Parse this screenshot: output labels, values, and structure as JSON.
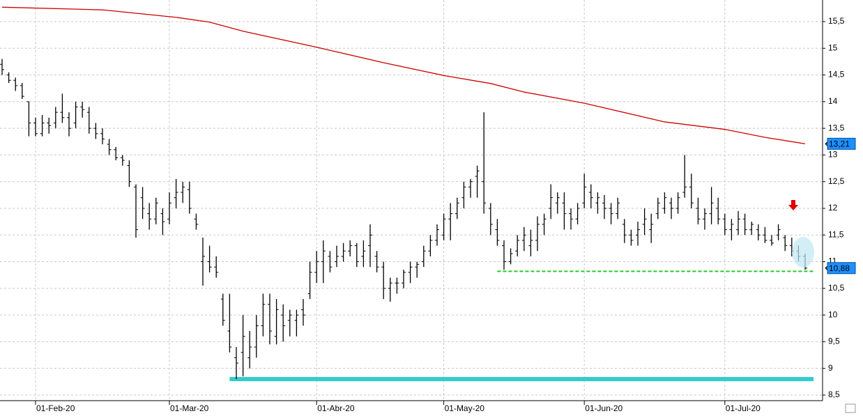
{
  "chart_data": {
    "type": "ohlc",
    "categories": [
      null,
      null,
      null,
      null,
      null,
      "01-Feb-20",
      null,
      null,
      null,
      null,
      null,
      null,
      null,
      null,
      null,
      null,
      null,
      null,
      null,
      null,
      null,
      null,
      null,
      null,
      null,
      "01-Mar-20",
      null,
      null,
      null,
      null,
      null,
      null,
      null,
      null,
      null,
      null,
      null,
      null,
      null,
      null,
      null,
      null,
      null,
      null,
      null,
      null,
      null,
      "01-Abr-20",
      null,
      null,
      null,
      null,
      null,
      null,
      null,
      null,
      null,
      null,
      null,
      null,
      null,
      null,
      null,
      null,
      null,
      null,
      "01-May-20",
      null,
      null,
      null,
      null,
      null,
      null,
      null,
      null,
      null,
      null,
      null,
      null,
      null,
      null,
      null,
      null,
      null,
      null,
      null,
      null,
      "01-Jun-20",
      null,
      null,
      null,
      null,
      null,
      null,
      null,
      null,
      null,
      null,
      null,
      null,
      null,
      null,
      null,
      null,
      null,
      null,
      null,
      null,
      "01-Jul-20",
      null,
      null,
      null,
      null,
      null,
      null,
      null,
      null,
      null,
      null,
      null,
      null
    ],
    "ohlc": [
      [
        14.7,
        14.8,
        14.5,
        14.6
      ],
      [
        14.5,
        14.55,
        14.35,
        14.4
      ],
      [
        14.4,
        14.45,
        14.2,
        14.3
      ],
      [
        14.3,
        14.35,
        14.05,
        14.1
      ],
      [
        14.0,
        14.0,
        13.35,
        13.6
      ],
      [
        13.6,
        13.7,
        13.35,
        13.4
      ],
      [
        13.4,
        13.75,
        13.35,
        13.6
      ],
      [
        13.6,
        13.7,
        13.4,
        13.55
      ],
      [
        13.6,
        13.9,
        13.5,
        13.8
      ],
      [
        13.8,
        14.15,
        13.6,
        13.7
      ],
      [
        13.7,
        13.8,
        13.35,
        13.5
      ],
      [
        13.6,
        14.0,
        13.5,
        13.9
      ],
      [
        13.9,
        14.0,
        13.7,
        13.85
      ],
      [
        13.8,
        13.9,
        13.4,
        13.5
      ],
      [
        13.5,
        13.6,
        13.3,
        13.4
      ],
      [
        13.4,
        13.5,
        13.2,
        13.3
      ],
      [
        13.2,
        13.3,
        13.0,
        13.1
      ],
      [
        13.1,
        13.15,
        12.9,
        12.95
      ],
      [
        12.95,
        13.0,
        12.8,
        12.9
      ],
      [
        12.8,
        12.9,
        12.4,
        12.5
      ],
      [
        12.4,
        12.45,
        11.45,
        11.6
      ],
      [
        12.2,
        12.4,
        11.8,
        12.0
      ],
      [
        11.9,
        12.1,
        11.6,
        11.8
      ],
      [
        11.8,
        12.2,
        11.7,
        12.1
      ],
      [
        11.9,
        12.0,
        11.5,
        11.75
      ],
      [
        11.8,
        12.3,
        11.7,
        12.1
      ],
      [
        12.2,
        12.55,
        12.0,
        12.3
      ],
      [
        12.3,
        12.5,
        12.1,
        12.4
      ],
      [
        12.35,
        12.5,
        11.9,
        12.0
      ],
      [
        11.8,
        11.9,
        11.6,
        11.7
      ],
      [
        11.0,
        11.45,
        10.55,
        11.1
      ],
      [
        11.0,
        11.3,
        10.8,
        10.9
      ],
      [
        10.9,
        11.1,
        10.7,
        10.8
      ],
      [
        10.3,
        10.4,
        9.8,
        9.9
      ],
      [
        9.7,
        10.4,
        9.3,
        9.4
      ],
      [
        9.2,
        9.4,
        8.8,
        9.1
      ],
      [
        9.3,
        10.0,
        8.85,
        9.6
      ],
      [
        9.2,
        9.7,
        9.0,
        9.4
      ],
      [
        9.4,
        10.0,
        9.2,
        9.8
      ],
      [
        9.8,
        10.4,
        9.6,
        10.2
      ],
      [
        10.2,
        10.4,
        9.45,
        9.7
      ],
      [
        9.6,
        10.3,
        9.45,
        10.1
      ],
      [
        10.0,
        10.2,
        9.5,
        9.8
      ],
      [
        9.9,
        10.1,
        9.6,
        10.0
      ],
      [
        9.9,
        10.1,
        9.6,
        10.0
      ],
      [
        10.1,
        10.3,
        9.8,
        10.0
      ],
      [
        10.4,
        11.0,
        10.3,
        10.8
      ],
      [
        10.8,
        11.2,
        10.6,
        11.0
      ],
      [
        11.0,
        11.4,
        10.6,
        11.2
      ],
      [
        11.1,
        11.2,
        10.8,
        10.9
      ],
      [
        11.0,
        11.3,
        10.9,
        11.1
      ],
      [
        11.1,
        11.35,
        11.0,
        11.2
      ],
      [
        11.2,
        11.4,
        11.1,
        11.3
      ],
      [
        11.3,
        11.35,
        10.9,
        11.0
      ],
      [
        11.1,
        11.4,
        10.9,
        11.2
      ],
      [
        11.3,
        11.7,
        10.9,
        11.5
      ],
      [
        11.1,
        11.2,
        10.8,
        10.9
      ],
      [
        10.9,
        11.0,
        10.3,
        10.5
      ],
      [
        10.5,
        10.7,
        10.25,
        10.6
      ],
      [
        10.6,
        10.7,
        10.4,
        10.6
      ],
      [
        10.6,
        10.85,
        10.5,
        10.8
      ],
      [
        10.8,
        11.0,
        10.6,
        10.9
      ],
      [
        10.9,
        11.0,
        10.7,
        10.95
      ],
      [
        11.0,
        11.3,
        10.9,
        11.2
      ],
      [
        11.2,
        11.5,
        11.1,
        11.4
      ],
      [
        11.4,
        11.7,
        11.3,
        11.6
      ],
      [
        11.5,
        11.9,
        11.4,
        11.8
      ],
      [
        11.8,
        12.1,
        11.4,
        11.9
      ],
      [
        11.9,
        12.2,
        11.8,
        12.1
      ],
      [
        12.2,
        12.5,
        12.0,
        12.4
      ],
      [
        12.4,
        12.55,
        12.2,
        12.5
      ],
      [
        12.6,
        12.8,
        12.2,
        12.7
      ],
      [
        12.5,
        13.8,
        11.9,
        12.1
      ],
      [
        12.0,
        12.1,
        11.5,
        11.7
      ],
      [
        11.6,
        11.8,
        11.3,
        11.4
      ],
      [
        11.3,
        11.4,
        10.85,
        11.0
      ],
      [
        11.0,
        11.25,
        10.95,
        11.15
      ],
      [
        11.2,
        11.5,
        11.1,
        11.4
      ],
      [
        11.4,
        11.65,
        11.2,
        11.5
      ],
      [
        11.3,
        11.6,
        11.1,
        11.4
      ],
      [
        11.4,
        11.85,
        11.2,
        11.7
      ],
      [
        11.7,
        11.9,
        11.5,
        11.8
      ],
      [
        12.0,
        12.45,
        11.8,
        12.2
      ],
      [
        12.1,
        12.3,
        11.9,
        12.2
      ],
      [
        12.1,
        12.3,
        11.6,
        11.9
      ],
      [
        11.9,
        12.0,
        11.6,
        11.8
      ],
      [
        11.8,
        12.1,
        11.7,
        12.0
      ],
      [
        12.1,
        12.65,
        12.0,
        12.4
      ],
      [
        12.3,
        12.45,
        12.0,
        12.2
      ],
      [
        12.1,
        12.3,
        11.9,
        12.2
      ],
      [
        12.1,
        12.25,
        11.8,
        12.0
      ],
      [
        12.0,
        12.1,
        11.7,
        11.9
      ],
      [
        11.9,
        12.2,
        11.8,
        12.1
      ],
      [
        11.7,
        11.8,
        11.35,
        11.5
      ],
      [
        11.5,
        11.6,
        11.3,
        11.4
      ],
      [
        11.5,
        11.75,
        11.3,
        11.6
      ],
      [
        11.7,
        12.0,
        11.5,
        11.8
      ],
      [
        11.6,
        11.9,
        11.35,
        11.7
      ],
      [
        11.9,
        12.2,
        11.8,
        12.1
      ],
      [
        12.0,
        12.3,
        11.9,
        12.2
      ],
      [
        12.1,
        12.2,
        11.8,
        12.0
      ],
      [
        12.0,
        12.3,
        11.9,
        12.2
      ],
      [
        12.3,
        13.0,
        12.2,
        12.4
      ],
      [
        12.4,
        12.65,
        12.0,
        12.1
      ],
      [
        12.0,
        12.2,
        11.7,
        11.8
      ],
      [
        11.8,
        12.0,
        11.6,
        11.9
      ],
      [
        11.9,
        12.4,
        11.7,
        12.1
      ],
      [
        12.0,
        12.2,
        11.7,
        11.8
      ],
      [
        11.8,
        11.9,
        11.5,
        11.6
      ],
      [
        11.6,
        11.8,
        11.4,
        11.7
      ],
      [
        11.6,
        11.95,
        11.5,
        11.8
      ],
      [
        11.8,
        11.9,
        11.5,
        11.6
      ],
      [
        11.6,
        11.75,
        11.5,
        11.7
      ],
      [
        11.6,
        11.7,
        11.4,
        11.5
      ],
      [
        11.5,
        11.65,
        11.35,
        11.4
      ],
      [
        11.4,
        11.5,
        11.3,
        11.35
      ],
      [
        11.5,
        11.7,
        11.4,
        11.6
      ],
      [
        11.45,
        11.5,
        11.2,
        11.3
      ],
      [
        11.3,
        11.45,
        11.1,
        11.2
      ],
      [
        11.2,
        11.3,
        11.0,
        11.1
      ],
      [
        11.1,
        11.15,
        10.85,
        10.88
      ]
    ],
    "bar_color": "#000000",
    "ma": {
      "color": "#cc0000",
      "x": [
        0,
        15,
        26,
        31,
        36,
        47,
        57,
        66,
        73,
        78,
        87,
        99,
        108,
        114,
        120
      ],
      "values": [
        15.77,
        15.72,
        15.58,
        15.49,
        15.32,
        15.02,
        14.73,
        14.49,
        14.34,
        14.18,
        13.97,
        13.62,
        13.48,
        13.33,
        13.21
      ]
    },
    "price_labels": [
      {
        "value": 13.21,
        "label": "13,21"
      },
      {
        "value": 10.88,
        "label": "10,88"
      }
    ],
    "support_lines": [
      {
        "value": 10.82,
        "start": 74,
        "color": "#22cc22",
        "style": "dashed"
      },
      {
        "value": 8.8,
        "start": 34,
        "color": "#33cccc",
        "style": "solid"
      }
    ],
    "ylim": [
      8.395,
      15.905
    ],
    "yticks": [
      {
        "value": 8.5,
        "label": "8,5"
      },
      9,
      {
        "value": 9.5,
        "label": "9,5"
      },
      10,
      {
        "value": 10.5,
        "label": "10,5"
      },
      11,
      {
        "value": 11.5,
        "label": "11,5"
      },
      12,
      {
        "value": 12.5,
        "label": "12,5"
      },
      13,
      {
        "value": 13.5,
        "label": "13,5"
      },
      14,
      {
        "value": 14.5,
        "label": "14,5"
      },
      15,
      {
        "value": 15.5,
        "label": "15,5"
      }
    ],
    "grid": true
  }
}
